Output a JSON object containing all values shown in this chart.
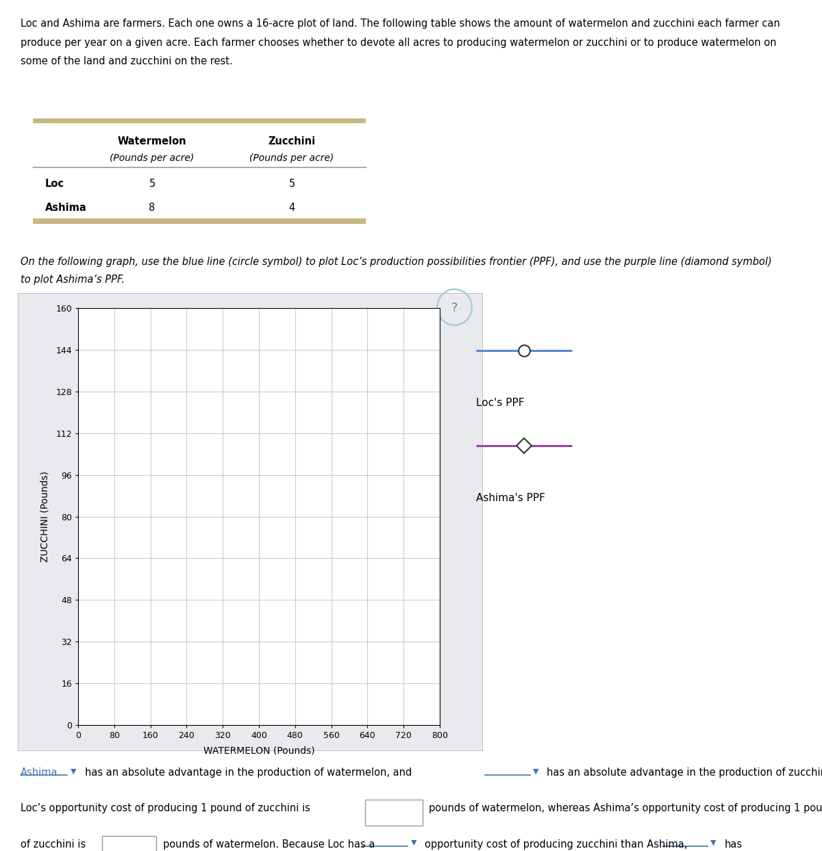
{
  "intro_text_line1": "Loc and Ashima are farmers. Each one owns a 16-acre plot of land. The following table shows the amount of watermelon and zucchini each farmer can",
  "intro_text_line2": "produce per year on a given acre. Each farmer chooses whether to devote all acres to producing watermelon or zucchini or to produce watermelon on",
  "intro_text_line3": "some of the land and zucchini on the rest.",
  "table_bar_color": "#c8b882",
  "table_divider_color": "#888888",
  "instruction_text_line1": "On the following graph, use the blue line (circle symbol) to plot Loc’s production possibilities frontier (PPF), and use the purple line (diamond symbol)",
  "instruction_text_line2": "to plot Ashima’s PPF.",
  "graph_xlabel": "WATERMELON (Pounds)",
  "graph_ylabel": "ZUCCHINI (Pounds)",
  "graph_xlim": [
    0,
    800
  ],
  "graph_ylim": [
    0,
    160
  ],
  "graph_xticks": [
    0,
    80,
    160,
    240,
    320,
    400,
    480,
    560,
    640,
    720,
    800
  ],
  "graph_yticks": [
    0,
    16,
    32,
    48,
    64,
    80,
    96,
    112,
    128,
    144,
    160
  ],
  "graph_grid_color": "#cccccc",
  "graph_bg_color": "#f0f2f5",
  "graph_plot_bg": "#ffffff",
  "loc_color": "#5588cc",
  "ashima_color": "#9944aa",
  "loc_label": "Loc's PPF",
  "ashima_label": "Ashima's PPF",
  "ashima_link_color": "#4477aa",
  "dropdown_color": "#4477aa"
}
